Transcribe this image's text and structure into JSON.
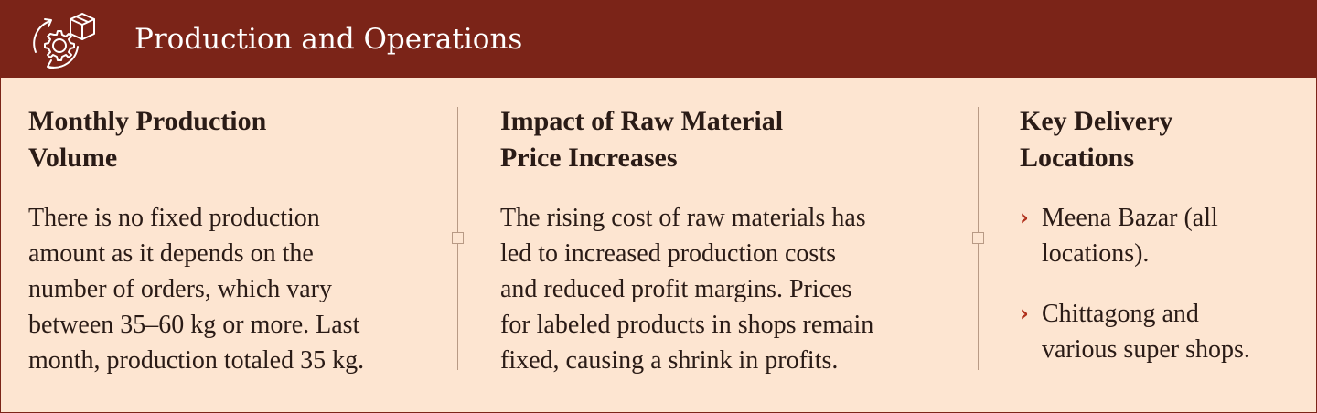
{
  "header": {
    "title": "Production and Operations",
    "icon": "gear-box-icon"
  },
  "colors": {
    "header_bg": "#7b2418",
    "panel_bg": "#fde5d1",
    "accent": "#b0301c",
    "text": "#2a1b16"
  },
  "columns": [
    {
      "title_lines": [
        "Monthly Production",
        "Volume"
      ],
      "text_lines": [
        "There is no fixed production",
        "amount as it depends on the",
        "number of orders, which vary",
        "between 35–60 kg or more. Last",
        "month, production totaled 35 kg."
      ]
    },
    {
      "title_lines": [
        "Impact of Raw Material",
        "Price Increases"
      ],
      "text_lines": [
        "The rising cost of raw materials has",
        "led to increased production costs",
        "and reduced profit margins. Prices",
        "for labeled products in shops remain",
        "fixed, causing a shrink in profits."
      ]
    },
    {
      "title_lines": [
        "Key Delivery",
        "Locations"
      ],
      "locations": [
        {
          "lines": [
            "Meena Bazar (all",
            "locations)."
          ]
        },
        {
          "lines": [
            "Chittagong and",
            "various super shops."
          ]
        }
      ]
    }
  ]
}
